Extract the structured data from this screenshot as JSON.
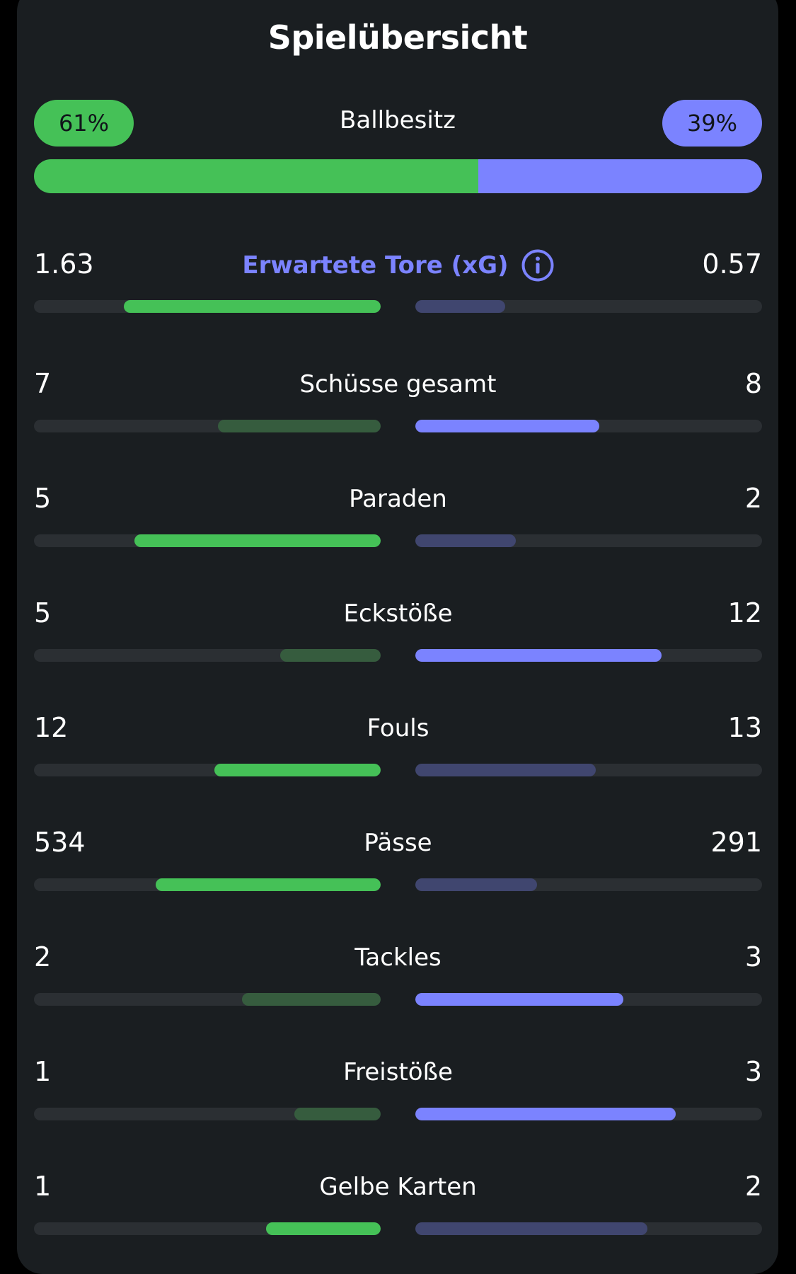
{
  "colors": {
    "home": "#45c157",
    "home_dim": "#365c3e",
    "away": "#7b83ff",
    "away_dim": "#40466f",
    "accent": "#7b83ff",
    "background": "#1a1e21",
    "track": "#2b2f33"
  },
  "title": "Spielübersicht",
  "possession": {
    "label": "Ballbesitz",
    "home_text": "61%",
    "away_text": "39%",
    "home_share": 0.61,
    "away_share": 0.39
  },
  "stats": [
    {
      "label": "Erwartete Tore (xG)",
      "home": "1.63",
      "away": "0.57",
      "home_fill": 0.74,
      "away_fill": 0.26,
      "home_winner": true,
      "away_winner": false,
      "accent": true,
      "icon": "info-icon"
    },
    {
      "label": "Schüsse gesamt",
      "home": "7",
      "away": "8",
      "home_fill": 0.47,
      "away_fill": 0.53,
      "home_winner": false,
      "away_winner": true
    },
    {
      "label": "Paraden",
      "home": "5",
      "away": "2",
      "home_fill": 0.71,
      "away_fill": 0.29,
      "home_winner": true,
      "away_winner": false
    },
    {
      "label": "Eckstöße",
      "home": "5",
      "away": "12",
      "home_fill": 0.29,
      "away_fill": 0.71,
      "home_winner": false,
      "away_winner": true
    },
    {
      "label": "Fouls",
      "home": "12",
      "away": "13",
      "home_fill": 0.48,
      "away_fill": 0.52,
      "home_winner": true,
      "away_winner": false
    },
    {
      "label": "Pässe",
      "home": "534",
      "away": "291",
      "home_fill": 0.65,
      "away_fill": 0.35,
      "home_winner": true,
      "away_winner": false
    },
    {
      "label": "Tackles",
      "home": "2",
      "away": "3",
      "home_fill": 0.4,
      "away_fill": 0.6,
      "home_winner": false,
      "away_winner": true
    },
    {
      "label": "Freistöße",
      "home": "1",
      "away": "3",
      "home_fill": 0.25,
      "away_fill": 0.75,
      "home_winner": false,
      "away_winner": true
    },
    {
      "label": "Gelbe Karten",
      "home": "1",
      "away": "2",
      "home_fill": 0.33,
      "away_fill": 0.67,
      "home_winner": true,
      "away_winner": false
    }
  ]
}
